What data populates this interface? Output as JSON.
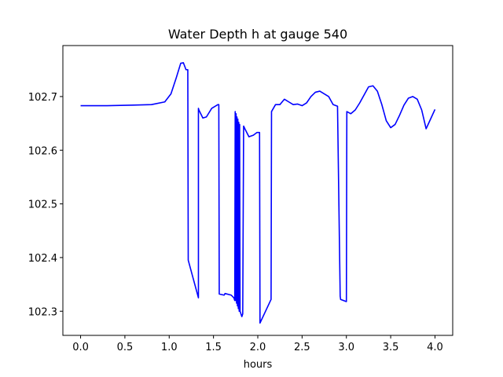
{
  "chart_data": {
    "type": "line",
    "title": "Water Depth h at gauge 540",
    "xlabel": "hours",
    "ylabel": "",
    "xlim": [
      -0.2,
      4.2
    ],
    "ylim": [
      102.255,
      102.795
    ],
    "grid": false,
    "legend": "none",
    "x_ticks": [
      0.0,
      0.5,
      1.0,
      1.5,
      2.0,
      2.5,
      3.0,
      3.5,
      4.0
    ],
    "x_tick_labels": [
      "0.0",
      "0.5",
      "1.0",
      "1.5",
      "2.0",
      "2.5",
      "3.0",
      "3.5",
      "4.0"
    ],
    "y_ticks": [
      102.3,
      102.4,
      102.5,
      102.6,
      102.7
    ],
    "y_tick_labels": [
      "102.3",
      "102.4",
      "102.5",
      "102.6",
      "102.7"
    ],
    "series": [
      {
        "color": "#0000ff",
        "x": [
          0.0,
          0.3,
          0.6,
          0.8,
          0.95,
          1.02,
          1.08,
          1.13,
          1.16,
          1.19,
          1.21,
          1.215,
          1.33,
          1.33,
          1.335,
          1.38,
          1.42,
          1.48,
          1.55,
          1.56,
          1.565,
          1.62,
          1.63,
          1.7,
          1.73,
          1.74,
          1.745,
          1.75,
          1.755,
          1.76,
          1.765,
          1.77,
          1.775,
          1.78,
          1.785,
          1.79,
          1.795,
          1.8,
          1.82,
          1.83,
          1.84,
          1.86,
          1.9,
          1.95,
          1.99,
          2.02,
          2.025,
          2.025,
          2.15,
          2.155,
          2.2,
          2.25,
          2.3,
          2.35,
          2.4,
          2.45,
          2.5,
          2.55,
          2.6,
          2.65,
          2.7,
          2.8,
          2.85,
          2.9,
          2.93,
          2.935,
          3.0,
          3.005,
          3.05,
          3.1,
          3.15,
          3.2,
          3.25,
          3.3,
          3.35,
          3.4,
          3.45,
          3.5,
          3.55,
          3.6,
          3.65,
          3.7,
          3.75,
          3.8,
          3.85,
          3.9,
          3.95,
          4.0
        ],
        "y": [
          102.683,
          102.683,
          102.684,
          102.685,
          102.69,
          102.705,
          102.735,
          102.762,
          102.763,
          102.75,
          102.75,
          102.395,
          102.325,
          102.678,
          102.675,
          102.66,
          102.662,
          102.678,
          102.685,
          102.685,
          102.332,
          102.33,
          102.333,
          102.33,
          102.325,
          102.32,
          102.672,
          102.32,
          102.668,
          102.315,
          102.662,
          102.31,
          102.658,
          102.305,
          102.652,
          102.3,
          102.648,
          102.3,
          102.29,
          102.295,
          102.645,
          102.638,
          102.625,
          102.628,
          102.633,
          102.633,
          102.28,
          102.278,
          102.322,
          102.672,
          102.685,
          102.685,
          102.695,
          102.69,
          102.685,
          102.686,
          102.683,
          102.688,
          102.7,
          102.708,
          102.71,
          102.7,
          102.685,
          102.682,
          102.328,
          102.322,
          102.318,
          102.672,
          102.668,
          102.675,
          102.688,
          102.703,
          102.718,
          102.72,
          102.71,
          102.685,
          102.655,
          102.642,
          102.648,
          102.665,
          102.684,
          102.697,
          102.7,
          102.695,
          102.675,
          102.64,
          102.658,
          102.676
        ]
      }
    ]
  }
}
